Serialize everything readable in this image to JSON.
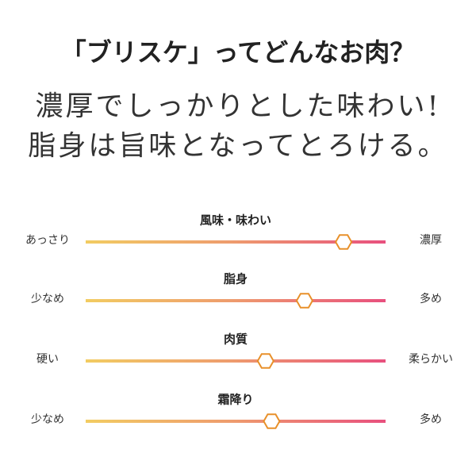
{
  "header": {
    "title": "「ブリスケ」ってどんなお肉？",
    "lines": [
      "濃厚でしっかりとした味わい!",
      "脂身は旨味となってとろける。"
    ]
  },
  "scale": [
    0,
    100
  ],
  "sliders": [
    {
      "label": "風味・味わい",
      "left": "あっさり",
      "right": "濃厚",
      "value": 86
    },
    {
      "label": "脂身",
      "left": "少なめ",
      "right": "多め",
      "value": 73
    },
    {
      "label": "肉質",
      "left": "硬い",
      "right": "柔らかい",
      "value": 60
    },
    {
      "label": "霜降り",
      "left": "少なめ",
      "right": "多め",
      "value": 62
    }
  ]
}
